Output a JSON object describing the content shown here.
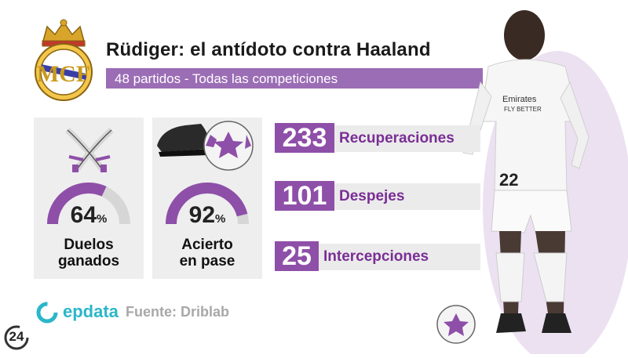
{
  "header": {
    "title": "Rüdiger: el antídoto contra Haaland",
    "subtitle": "48 partidos - Todas las competiciones"
  },
  "cards": [
    {
      "icon": "crossed-swords-icon",
      "value": "64",
      "unit": "%",
      "fraction": 0.64,
      "caption_line1": "Duelos",
      "caption_line2": "ganados"
    },
    {
      "icon": "boot-and-ball-icon",
      "value": "92",
      "unit": "%",
      "fraction": 0.92,
      "caption_line1": "Acierto",
      "caption_line2": "en pase"
    }
  ],
  "stats": [
    {
      "value": "233",
      "label": "Recuperaciones"
    },
    {
      "value": "101",
      "label": "Despejes"
    },
    {
      "value": "25",
      "label": "Intercepciones"
    }
  ],
  "footer": {
    "brand": "epdata",
    "source": "Fuente: Driblab",
    "badge": "24"
  },
  "colors": {
    "accent": "#8e4fa8",
    "accent_light": "#9b6db5",
    "card_bg": "#eeeeee",
    "brand": "#2bb6c9"
  }
}
